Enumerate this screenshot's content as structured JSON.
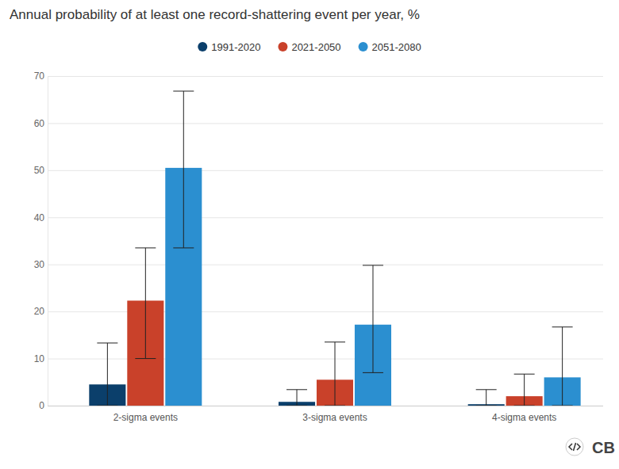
{
  "chart_data": {
    "type": "bar",
    "title": "Annual probability of at least one record-shattering event per year, %",
    "categories": [
      "2-sigma events",
      "3-sigma events",
      "4-sigma events"
    ],
    "series": [
      {
        "name": "1991-2020",
        "color": "#0b3f6b",
        "values": [
          4.5,
          0.8,
          0.3
        ],
        "lower": [
          0,
          0,
          0
        ],
        "upper": [
          13.3,
          3.4,
          3.4
        ]
      },
      {
        "name": "2021-2050",
        "color": "#c9412a",
        "values": [
          22.3,
          5.5,
          2.0
        ],
        "lower": [
          10,
          0,
          0
        ],
        "upper": [
          33.5,
          13.5,
          6.7
        ]
      },
      {
        "name": "2051-2080",
        "color": "#2b8fd0",
        "values": [
          50.5,
          17.2,
          6.0
        ],
        "lower": [
          33.5,
          7,
          0
        ],
        "upper": [
          66.8,
          29.8,
          16.7
        ]
      }
    ],
    "ylim": [
      0,
      70
    ],
    "yticks": [
      0,
      10,
      20,
      30,
      40,
      50,
      60,
      70
    ],
    "grid": true,
    "legend": "top",
    "annotations": [
      "CB"
    ]
  }
}
